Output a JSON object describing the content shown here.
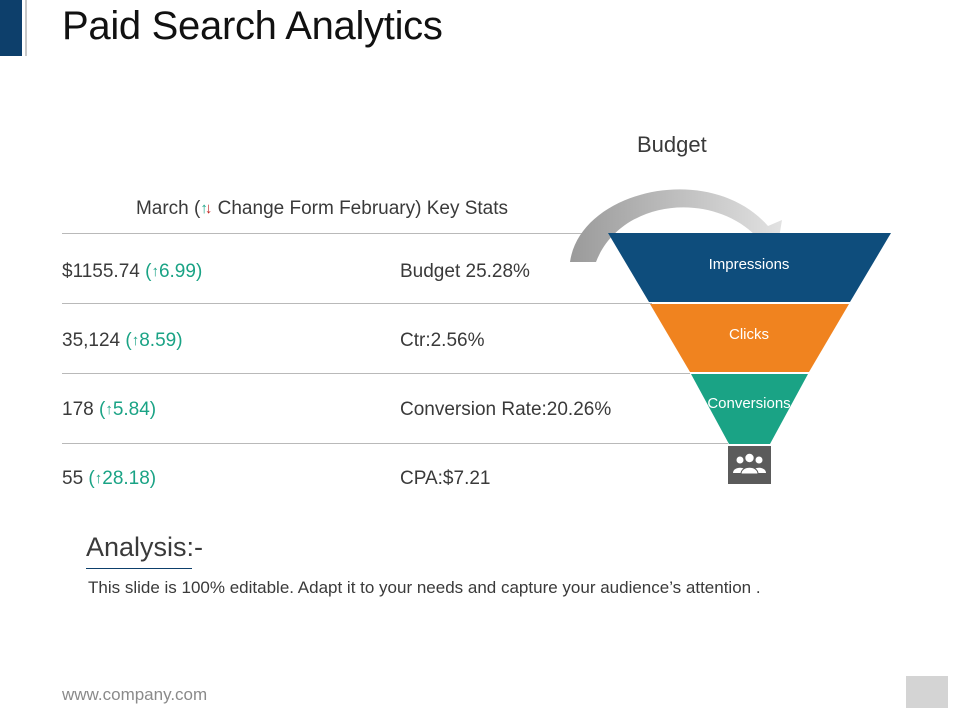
{
  "title": "Paid Search Analytics",
  "stats_header": {
    "before": "March (",
    "after": "Change Form February) Key Stats",
    "up_icon": "arrow-up-icon",
    "down_icon": "arrow-down-icon"
  },
  "rows": [
    {
      "value": "$1155.74",
      "change": "6.99",
      "metric": "Budget 25.28%"
    },
    {
      "value": "35,124",
      "change": "8.59",
      "metric": "Ctr:2.56%"
    },
    {
      "value": "178",
      "change": "5.84",
      "metric": "Conversion Rate:20.26%"
    },
    {
      "value": "55",
      "change": "28.18",
      "metric": "CPA:$7.21"
    }
  ],
  "funnel": {
    "budget_label": "Budget",
    "stages": [
      {
        "label": "Impressions",
        "color": "#0e4d7c"
      },
      {
        "label": "Clicks",
        "color": "#f0831f"
      },
      {
        "label": "Conversions",
        "color": "#1aa385"
      }
    ],
    "curved_arrow_color": "#bdbdbd",
    "people_icon": "people-group-icon"
  },
  "analysis": {
    "title": "Analysis:-",
    "text": "This slide is 100% editable. Adapt it to your needs and capture your audience’s attention ."
  },
  "footer": {
    "url": "www.company.com"
  }
}
